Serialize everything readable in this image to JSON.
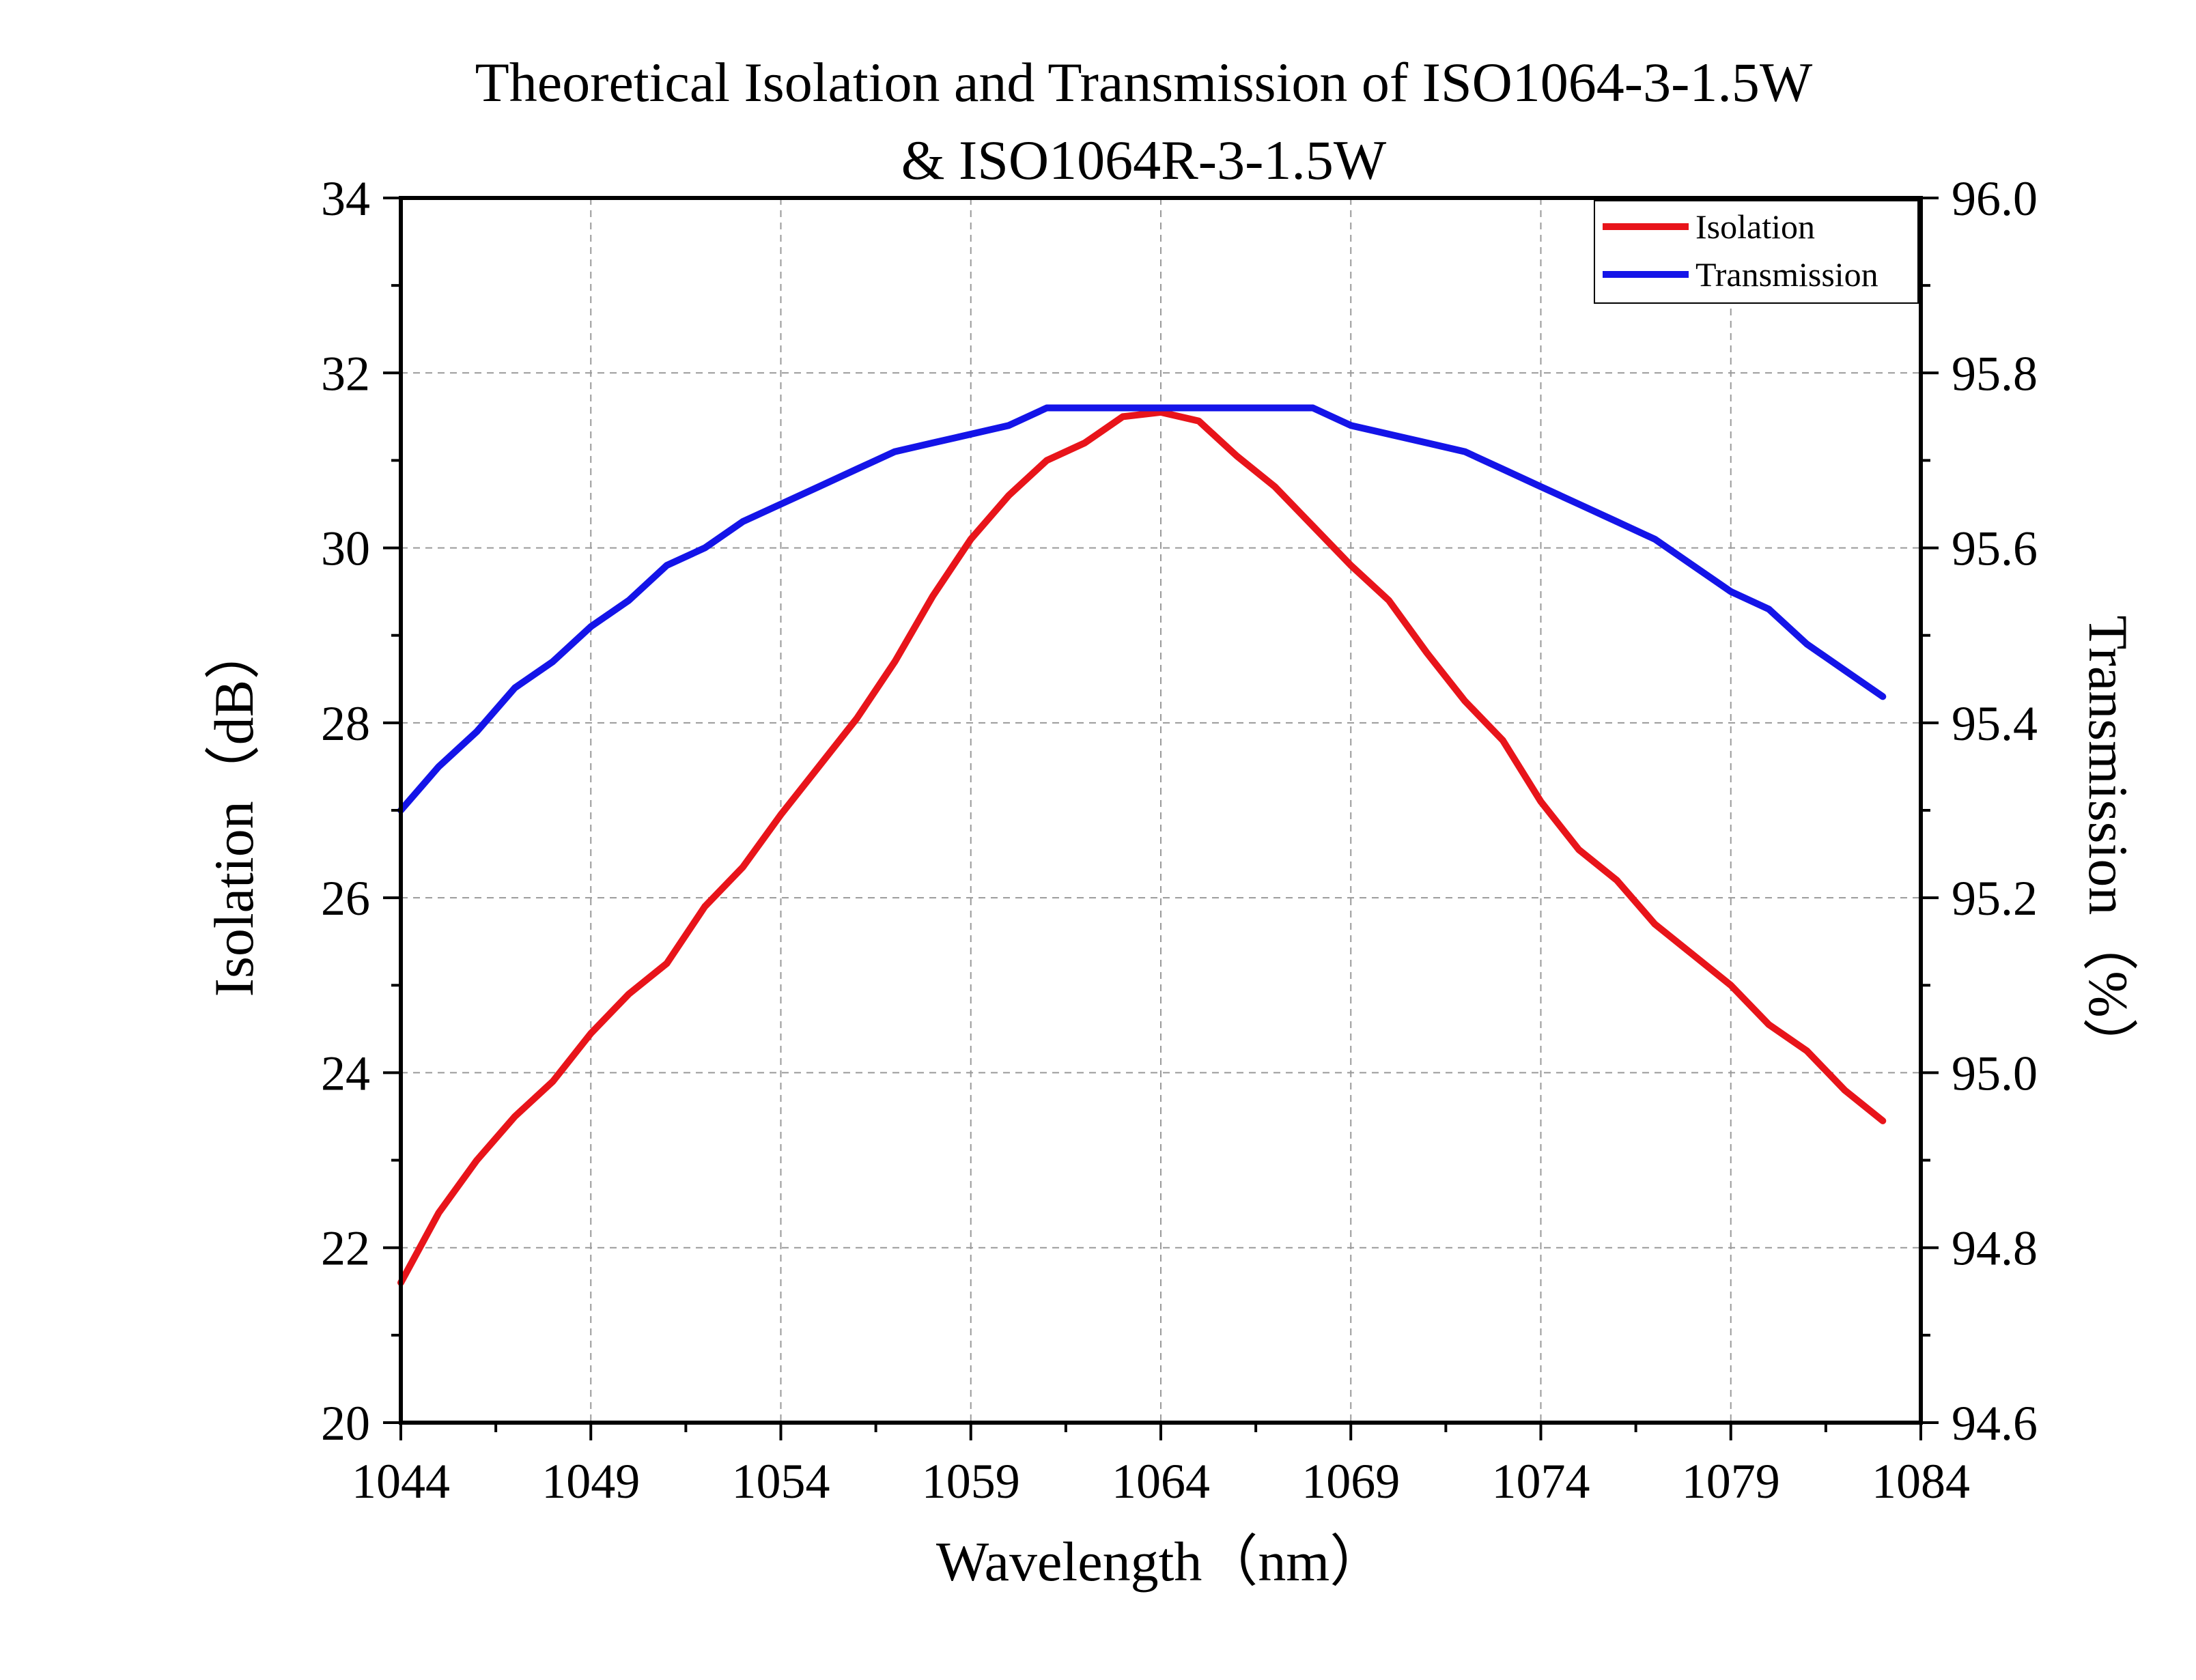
{
  "chart_data": {
    "type": "line",
    "title_lines": [
      "Theoretical Isolation and Transmission of ISO1064-3-1.5W",
      "& ISO1064R-3-1.5W"
    ],
    "xlabel": "Wavelength（nm）",
    "ylabel_left": "Isolation（dB）",
    "ylabel_right": "Transmission（%）",
    "xlim": [
      1044,
      1084
    ],
    "xticks": [
      1044,
      1049,
      1054,
      1059,
      1064,
      1069,
      1074,
      1079,
      1084
    ],
    "xtick_labels": [
      "1044",
      "1049",
      "1054",
      "1059",
      "1064",
      "1069",
      "1074",
      "1079",
      "1084"
    ],
    "ylim_left": [
      20,
      34
    ],
    "yticks_left": [
      20,
      22,
      24,
      26,
      28,
      30,
      32,
      34
    ],
    "ytick_labels_left": [
      "20",
      "22",
      "24",
      "26",
      "28",
      "30",
      "32",
      "34"
    ],
    "ylim_right": [
      94.6,
      96.0
    ],
    "yticks_right": [
      94.6,
      94.8,
      95.0,
      95.2,
      95.4,
      95.6,
      95.8,
      96.0
    ],
    "ytick_labels_right": [
      "94.6",
      "94.8",
      "95.0",
      "95.2",
      "95.4",
      "95.6",
      "95.8",
      "96.0"
    ],
    "grid": true,
    "legend_position": "top-right",
    "x": [
      1044,
      1045,
      1046,
      1047,
      1048,
      1049,
      1050,
      1051,
      1052,
      1053,
      1054,
      1055,
      1056,
      1057,
      1058,
      1059,
      1060,
      1061,
      1062,
      1063,
      1064,
      1065,
      1066,
      1067,
      1068,
      1069,
      1070,
      1071,
      1072,
      1073,
      1074,
      1075,
      1076,
      1077,
      1078,
      1079,
      1080,
      1081,
      1082,
      1083
    ],
    "series": [
      {
        "name": "Isolation",
        "axis": "left",
        "color": "#e8141a",
        "values": [
          21.6,
          22.4,
          23.0,
          23.5,
          23.9,
          24.45,
          24.9,
          25.25,
          25.9,
          26.35,
          26.95,
          27.5,
          28.05,
          28.7,
          29.45,
          30.1,
          30.6,
          31.0,
          31.2,
          31.5,
          31.55,
          31.45,
          31.05,
          30.7,
          30.25,
          29.8,
          29.4,
          28.8,
          28.25,
          27.8,
          27.1,
          26.55,
          26.2,
          25.7,
          25.35,
          25.0,
          24.55,
          24.25,
          23.8,
          23.45
        ]
      },
      {
        "name": "Transmission",
        "axis": "right",
        "color": "#1414e8",
        "values": [
          95.3,
          95.35,
          95.39,
          95.44,
          95.47,
          95.51,
          95.54,
          95.58,
          95.6,
          95.63,
          95.65,
          95.67,
          95.69,
          95.71,
          95.72,
          95.73,
          95.74,
          95.76,
          95.76,
          95.76,
          95.76,
          95.76,
          95.76,
          95.76,
          95.76,
          95.74,
          95.73,
          95.72,
          95.71,
          95.69,
          95.67,
          95.65,
          95.63,
          95.61,
          95.58,
          95.55,
          95.53,
          95.49,
          95.46,
          95.43
        ]
      }
    ]
  }
}
